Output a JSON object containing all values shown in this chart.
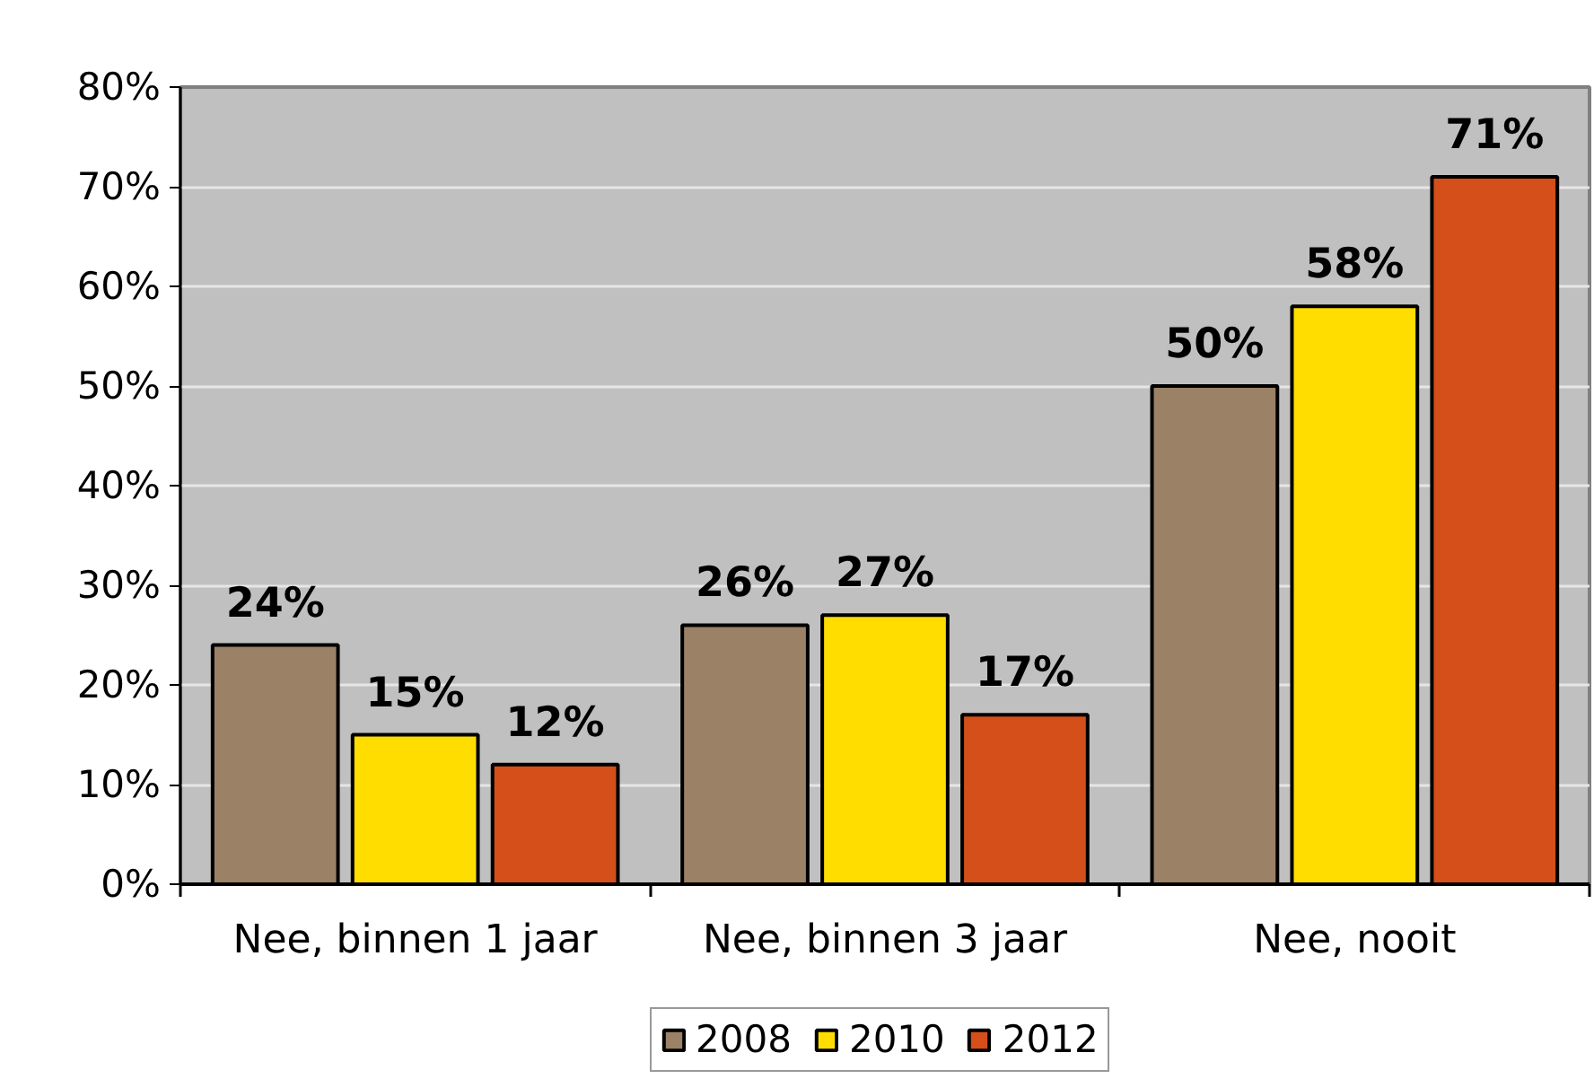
{
  "chart_data": {
    "type": "bar",
    "categories": [
      "Nee, binnen 1 jaar",
      "Nee, binnen 3 jaar",
      "Nee, nooit"
    ],
    "series": [
      {
        "name": "2008",
        "color": "#9b8166",
        "values": [
          24,
          26,
          50
        ],
        "value_labels": [
          "24%",
          "26%",
          "50%"
        ]
      },
      {
        "name": "2010",
        "color": "#ffdd00",
        "values": [
          15,
          27,
          58
        ],
        "value_labels": [
          "15%",
          "27%",
          "58%"
        ]
      },
      {
        "name": "2012",
        "color": "#d44f1a",
        "values": [
          12,
          17,
          71
        ],
        "value_labels": [
          "12%",
          "17%",
          "71%"
        ]
      }
    ],
    "ylim": [
      0,
      80
    ],
    "yticks": [
      {
        "value": 0,
        "label": "0%"
      },
      {
        "value": 10,
        "label": "10%"
      },
      {
        "value": 20,
        "label": "20%"
      },
      {
        "value": 30,
        "label": "30%"
      },
      {
        "value": 40,
        "label": "40%"
      },
      {
        "value": 50,
        "label": "50%"
      },
      {
        "value": 60,
        "label": "60%"
      },
      {
        "value": 70,
        "label": "70%"
      },
      {
        "value": 80,
        "label": "80%"
      }
    ],
    "grid": "y",
    "legend": "bottom"
  }
}
